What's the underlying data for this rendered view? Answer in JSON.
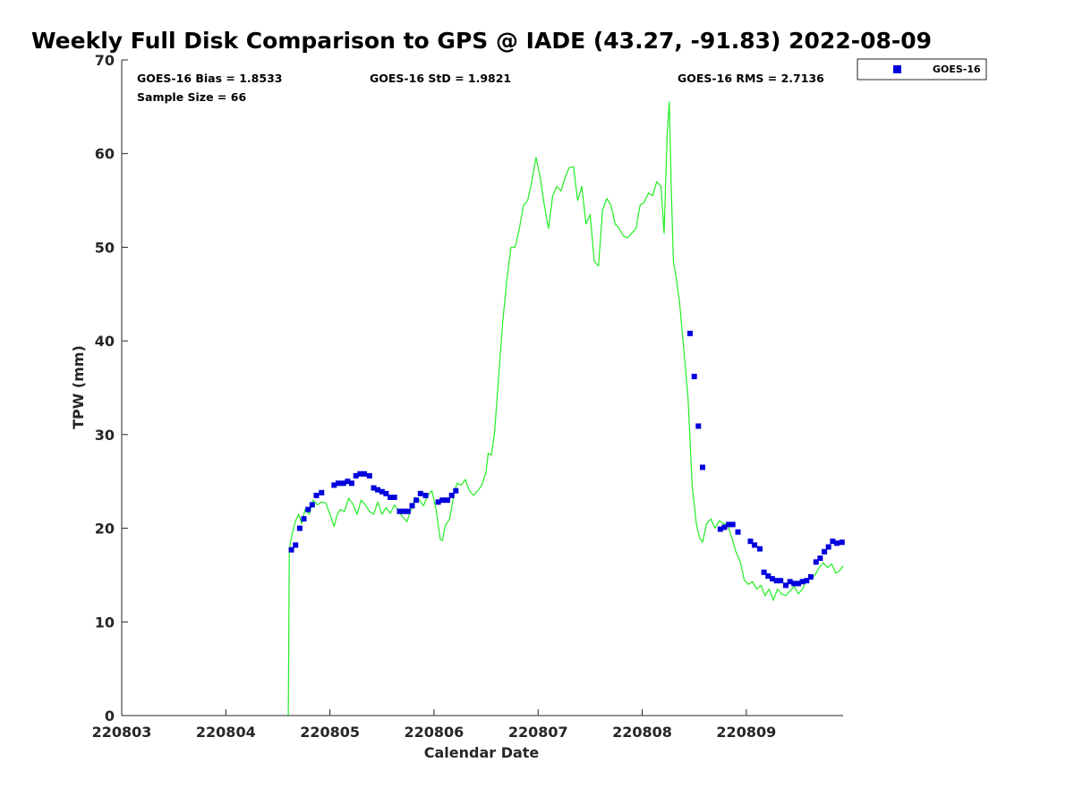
{
  "chart_data": {
    "type": "scatter",
    "title": "Weekly Full Disk Comparison to GPS @ IADE (43.27, -91.83) 2022-08-09",
    "xlabel": "Calendar Date",
    "ylabel": "TPW (mm)",
    "xlim": [
      220803,
      220809.93
    ],
    "ylim": [
      0,
      70
    ],
    "x_ticks": [
      "220803",
      "220804",
      "220805",
      "220806",
      "220807",
      "220808",
      "220809"
    ],
    "y_ticks": [
      "0",
      "10",
      "20",
      "30",
      "40",
      "50",
      "60",
      "70"
    ],
    "grid": false,
    "legend_position": "top-right, outside plot",
    "stats": {
      "bias": "GOES-16 Bias = 1.8533",
      "std": "GOES-16 StD = 1.9821",
      "rms": "GOES-16 RMS = 2.7136",
      "sample_size": "Sample Size = 66"
    },
    "series": [
      {
        "name": "GOES-16",
        "kind": "scatter",
        "color": "#0000dd",
        "x": [
          220804.63,
          220804.67,
          220804.71,
          220804.75,
          220804.79,
          220804.83,
          220804.87,
          220804.92,
          220805.04,
          220805.08,
          220805.13,
          220805.17,
          220805.21,
          220805.25,
          220805.29,
          220805.33,
          220805.38,
          220805.42,
          220805.46,
          220805.5,
          220805.54,
          220805.58,
          220805.62,
          220805.67,
          220805.71,
          220805.75,
          220805.79,
          220805.83,
          220805.87,
          220805.92,
          220806.04,
          220806.08,
          220806.13,
          220806.17,
          220806.21,
          220808.46,
          220808.5,
          220808.54,
          220808.58,
          220808.75,
          220808.79,
          220808.83,
          220808.87,
          220808.92,
          220809.04,
          220809.08,
          220809.13,
          220809.17,
          220809.21,
          220809.25,
          220809.29,
          220809.33,
          220809.38,
          220809.42,
          220809.46,
          220809.5,
          220809.54,
          220809.58,
          220809.62,
          220809.67,
          220809.71,
          220809.75,
          220809.79,
          220809.83,
          220809.87,
          220809.92
        ],
        "y": [
          17.7,
          18.2,
          20.0,
          21.0,
          22.0,
          22.5,
          23.5,
          23.8,
          24.6,
          24.8,
          24.8,
          25.0,
          24.8,
          25.6,
          25.8,
          25.8,
          25.6,
          24.3,
          24.1,
          23.9,
          23.7,
          23.3,
          23.3,
          21.8,
          21.8,
          21.8,
          22.4,
          23.0,
          23.7,
          23.5,
          22.8,
          23.0,
          23.0,
          23.5,
          24.0,
          40.8,
          36.2,
          30.9,
          26.5,
          19.9,
          20.1,
          20.4,
          20.4,
          19.6,
          18.6,
          18.2,
          17.8,
          15.3,
          14.9,
          14.6,
          14.4,
          14.4,
          13.9,
          14.3,
          14.1,
          14.1,
          14.3,
          14.4,
          14.8,
          16.4,
          16.8,
          17.5,
          18.0,
          18.6,
          18.4,
          18.5
        ]
      },
      {
        "name": "",
        "kind": "line",
        "color": "#22ee22",
        "x": [
          220804.6,
          220804.61,
          220804.64,
          220804.67,
          220804.7,
          220804.73,
          220804.76,
          220804.8,
          220804.84,
          220804.88,
          220804.92,
          220804.96,
          220805.0,
          220805.04,
          220805.07,
          220805.1,
          220805.14,
          220805.18,
          220805.22,
          220805.26,
          220805.3,
          220805.34,
          220805.38,
          220805.42,
          220805.46,
          220805.5,
          220805.54,
          220805.58,
          220805.62,
          220805.66,
          220805.7,
          220805.74,
          220805.78,
          220805.82,
          220805.86,
          220805.9,
          220805.94,
          220805.98,
          220806.02,
          220806.06,
          220806.08,
          220806.11,
          220806.15,
          220806.19,
          220806.22,
          220806.26,
          220806.3,
          220806.34,
          220806.38,
          220806.42,
          220806.46,
          220806.5,
          220806.52,
          220806.55,
          220806.58,
          220806.62,
          220806.66,
          220806.7,
          220806.74,
          220806.78,
          220806.82,
          220806.86,
          220806.9,
          220806.94,
          220806.98,
          220807.02,
          220807.06,
          220807.1,
          220807.14,
          220807.18,
          220807.22,
          220807.26,
          220807.3,
          220807.34,
          220807.38,
          220807.42,
          220807.46,
          220807.5,
          220807.54,
          220807.58,
          220807.62,
          220807.66,
          220807.7,
          220807.74,
          220807.78,
          220807.82,
          220807.86,
          220807.9,
          220807.94,
          220807.98,
          220808.02,
          220808.06,
          220808.1,
          220808.14,
          220808.18,
          220808.21,
          220808.24,
          220808.26,
          220808.28,
          220808.3,
          220808.33,
          220808.36,
          220808.4,
          220808.44,
          220808.48,
          220808.52,
          220808.55,
          220808.58,
          220808.62,
          220808.66,
          220808.7,
          220808.74,
          220808.78,
          220808.82,
          220808.86,
          220808.9,
          220808.94,
          220808.98,
          220809.02,
          220809.06,
          220809.1,
          220809.14,
          220809.18,
          220809.22,
          220809.26,
          220809.3,
          220809.34,
          220809.38,
          220809.42,
          220809.46,
          220809.5,
          220809.54,
          220809.58,
          220809.62,
          220809.66,
          220809.7,
          220809.74,
          220809.78,
          220809.82,
          220809.86,
          220809.9,
          220809.93
        ],
        "y": [
          0.0,
          17.8,
          19.5,
          20.8,
          21.5,
          20.5,
          22.0,
          21.5,
          23.0,
          22.5,
          22.8,
          22.7,
          21.5,
          20.2,
          21.5,
          22.0,
          21.8,
          23.2,
          22.6,
          21.5,
          23.0,
          22.5,
          21.8,
          21.5,
          22.8,
          21.5,
          22.2,
          21.6,
          22.5,
          21.8,
          21.2,
          20.7,
          22.0,
          23.3,
          23.0,
          22.4,
          23.5,
          24.0,
          22.0,
          18.8,
          18.7,
          20.3,
          21.0,
          23.5,
          24.8,
          24.6,
          25.2,
          24.0,
          23.5,
          24.0,
          24.6,
          26.0,
          28.0,
          27.8,
          30.0,
          36.0,
          42.0,
          46.5,
          50.0,
          50.0,
          52.0,
          54.5,
          55.0,
          57.0,
          59.6,
          57.5,
          54.5,
          52.0,
          55.5,
          56.5,
          56.0,
          57.5,
          58.5,
          58.6,
          55.0,
          56.5,
          52.5,
          53.5,
          48.5,
          48.0,
          54.0,
          55.2,
          54.5,
          52.5,
          52.0,
          51.2,
          51.0,
          51.5,
          52.0,
          54.5,
          54.8,
          55.8,
          55.5,
          57.0,
          56.5,
          51.5,
          62.0,
          65.5,
          56.0,
          48.5,
          46.5,
          44.0,
          39.0,
          34.0,
          24.5,
          20.5,
          19.0,
          18.5,
          20.5,
          21.0,
          20.0,
          20.8,
          20.5,
          20.4,
          19.0,
          17.5,
          16.5,
          14.5,
          14.0,
          14.3,
          13.5,
          13.9,
          12.8,
          13.5,
          12.3,
          13.5,
          13.0,
          12.8,
          13.3,
          13.8,
          13.0,
          13.5,
          14.5,
          14.6,
          15.0,
          15.8,
          16.3,
          15.8,
          16.2,
          15.2,
          15.5,
          16.0
        ]
      }
    ]
  },
  "legend": {
    "entries": [
      {
        "label": "GOES-16",
        "color": "#0000dd",
        "marker": "square"
      }
    ]
  },
  "colors": {
    "axis": "#262626",
    "scatter": "#0000dd",
    "line": "#22ee22"
  }
}
